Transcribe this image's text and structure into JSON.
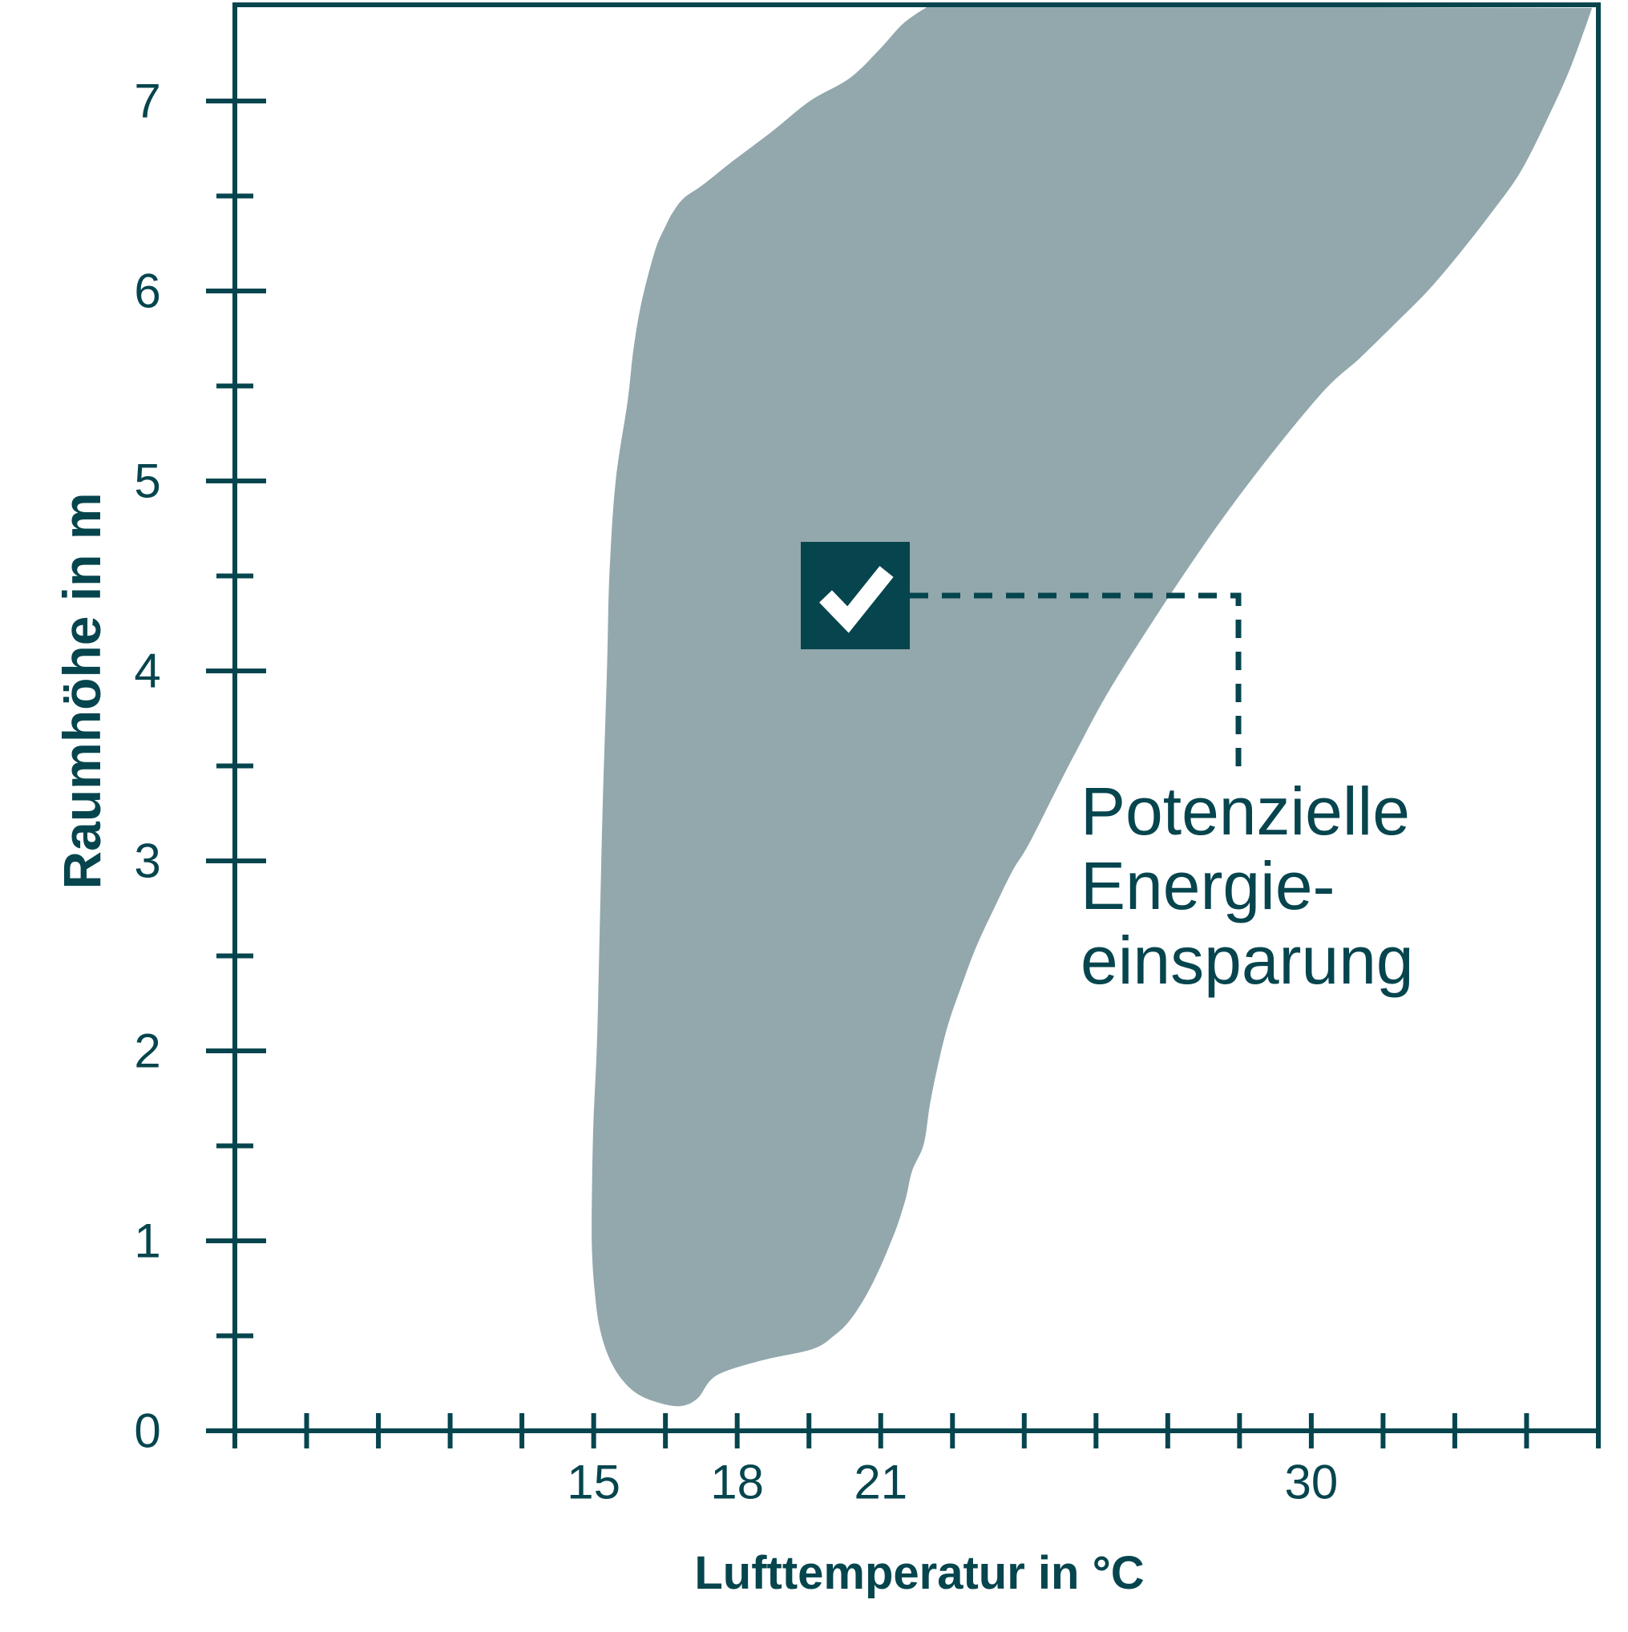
{
  "colors": {
    "dark_teal": "#06454E",
    "region_fill": "#93A8AC",
    "checkmark_white": "#FFFFFF",
    "background": "#FFFFFF"
  },
  "axes": {
    "x": {
      "label": "Lufttemperatur in °C",
      "tick_start_value": 7.5,
      "tick_step_value": 1.5,
      "tick_count": 20,
      "labeled_ticks": [
        15,
        18,
        21,
        30
      ]
    },
    "y": {
      "label": "Raumhöhe in m",
      "major_ticks": [
        0,
        1,
        2,
        3,
        4,
        5,
        6,
        7
      ],
      "minor_tick_step": 0.5,
      "axis_max": 7.5
    }
  },
  "annotation": {
    "lines": [
      "Potenzielle",
      "Energie-",
      "einsparung"
    ],
    "marker": "checkbox-checked",
    "marker_point": {
      "t_celsius": 20.5,
      "h_meters": 4.4
    }
  },
  "chart_data": {
    "type": "area",
    "xlabel": "Lufttemperatur in °C",
    "ylabel": "Raumhöhe in m",
    "xlim": [
      7.5,
      36
    ],
    "ylim": [
      0,
      7.5
    ],
    "grid": false,
    "x_tick_step": 1.5,
    "x_tick_labels": [
      15,
      18,
      21,
      30
    ],
    "y_tick_labels": [
      0,
      1,
      2,
      3,
      4,
      5,
      6,
      7
    ],
    "y_minor_tick_step": 0.5,
    "series": [
      {
        "name": "Potenzielle Energieeinsparung",
        "kind": "region",
        "boundary_t_h": [
          [
            22.0,
            7.5
          ],
          [
            21.48,
            7.41
          ],
          [
            20.97,
            7.27
          ],
          [
            20.35,
            7.12
          ],
          [
            19.52,
            7.0
          ],
          [
            18.73,
            6.84
          ],
          [
            17.89,
            6.68
          ],
          [
            17.29,
            6.56
          ],
          [
            16.89,
            6.49
          ],
          [
            16.67,
            6.42
          ],
          [
            16.5,
            6.34
          ],
          [
            16.28,
            6.21
          ],
          [
            16.0,
            5.94
          ],
          [
            15.83,
            5.69
          ],
          [
            15.71,
            5.42
          ],
          [
            15.46,
            5.0
          ],
          [
            15.33,
            4.51
          ],
          [
            15.28,
            4.02
          ],
          [
            15.19,
            3.31
          ],
          [
            15.13,
            2.68
          ],
          [
            15.07,
            2.05
          ],
          [
            14.99,
            1.58
          ],
          [
            14.96,
            1.13
          ],
          [
            14.97,
            0.92
          ],
          [
            15.02,
            0.74
          ],
          [
            15.11,
            0.56
          ],
          [
            15.28,
            0.41
          ],
          [
            15.53,
            0.29
          ],
          [
            15.88,
            0.2
          ],
          [
            16.33,
            0.15
          ],
          [
            16.8,
            0.13
          ],
          [
            17.17,
            0.17
          ],
          [
            17.56,
            0.29
          ],
          [
            18.51,
            0.37
          ],
          [
            19.57,
            0.43
          ],
          [
            20.02,
            0.5
          ],
          [
            20.35,
            0.58
          ],
          [
            20.69,
            0.71
          ],
          [
            20.97,
            0.85
          ],
          [
            21.19,
            0.98
          ],
          [
            21.36,
            1.09
          ],
          [
            21.53,
            1.23
          ],
          [
            21.66,
            1.37
          ],
          [
            21.9,
            1.51
          ],
          [
            22.03,
            1.72
          ],
          [
            22.2,
            1.93
          ],
          [
            22.41,
            2.14
          ],
          [
            22.7,
            2.35
          ],
          [
            23.0,
            2.55
          ],
          [
            23.37,
            2.75
          ],
          [
            23.76,
            2.95
          ],
          [
            24.12,
            3.1
          ],
          [
            25.05,
            3.56
          ],
          [
            26.05,
            4.01
          ],
          [
            28.11,
            4.79
          ],
          [
            30.07,
            5.42
          ],
          [
            31.03,
            5.65
          ],
          [
            31.8,
            5.84
          ],
          [
            32.47,
            6.01
          ],
          [
            33.14,
            6.21
          ],
          [
            33.76,
            6.41
          ],
          [
            34.38,
            6.63
          ],
          [
            34.98,
            6.93
          ],
          [
            35.44,
            7.19
          ],
          [
            35.87,
            7.49
          ]
        ]
      }
    ]
  }
}
